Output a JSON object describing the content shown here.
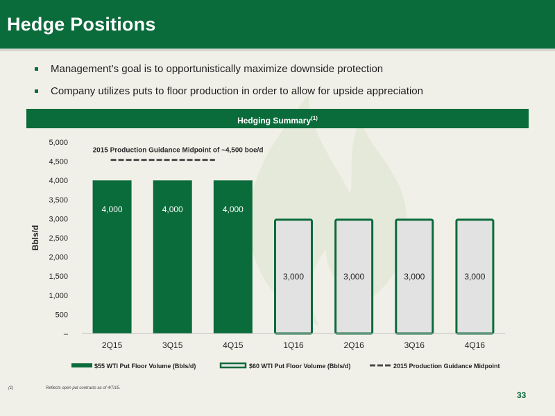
{
  "slide": {
    "title": "Hedge Positions",
    "bullets": [
      "Management’s goal is to opportunistically maximize downside protection",
      "Company utilizes puts to floor production in order to allow for upside appreciation"
    ],
    "section_header": "Hedging Summary",
    "section_header_note": "(1)",
    "footnote_ref": "(1)",
    "footnote_text": "Reflects open put contracts as of 4/7/15.",
    "page_number": "33"
  },
  "colors": {
    "brand_green": "#0a6b3b",
    "bar_light_fill": "#e2e2e2",
    "background": "#f1f0e8"
  },
  "chart_data": {
    "type": "bar",
    "categories": [
      "2Q15",
      "3Q15",
      "4Q15",
      "1Q16",
      "2Q16",
      "3Q16",
      "4Q16"
    ],
    "series": [
      {
        "name": "$55 WTI Put Floor Volume (Bbls/d)",
        "values": [
          4000,
          4000,
          4000,
          null,
          null,
          null,
          null
        ],
        "style": "solid"
      },
      {
        "name": "$60 WTI Put Floor Volume (Bbls/d)",
        "values": [
          null,
          null,
          null,
          3000,
          3000,
          3000,
          3000
        ],
        "style": "outline"
      }
    ],
    "data_labels": [
      "4,000",
      "4,000",
      "4,000",
      "3,000",
      "3,000",
      "3,000",
      "3,000"
    ],
    "reference_line": {
      "name": "2015 Production Guidance Midpoint",
      "value": 4500,
      "span_categories": [
        "2Q15",
        "4Q15"
      ],
      "annotation": "2015 Production Guidance Midpoint of ~4,500 boe/d",
      "style": "dashed"
    },
    "ylabel": "Bbls/d",
    "xlabel": "",
    "ylim": [
      0,
      5000
    ],
    "yticks": [
      0,
      500,
      1000,
      1500,
      2000,
      2500,
      3000,
      3500,
      4000,
      4500,
      5000
    ],
    "ytick_labels": [
      "–",
      "500",
      "1,000",
      "1,500",
      "2,000",
      "2,500",
      "3,000",
      "3,500",
      "4,000",
      "4,500",
      "5,000"
    ],
    "grid": false,
    "legend_position": "bottom"
  }
}
